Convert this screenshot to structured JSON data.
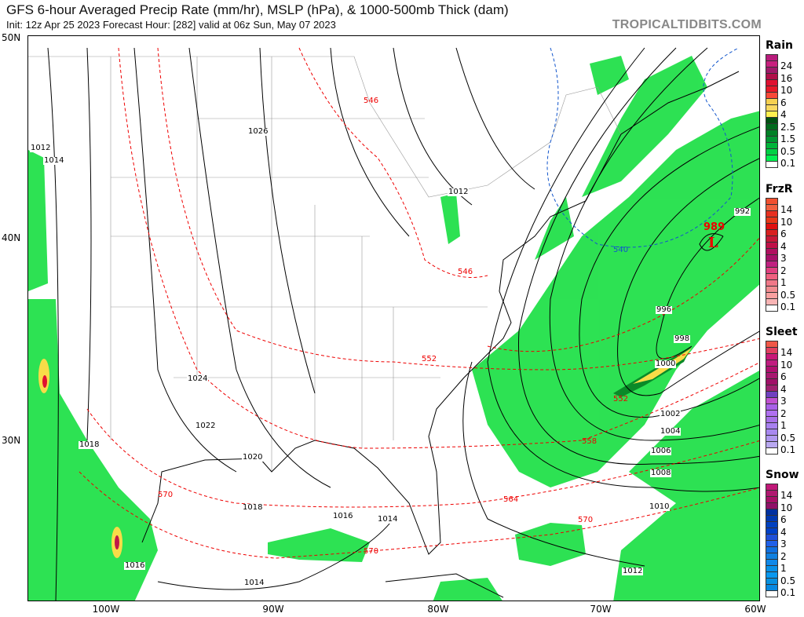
{
  "header": {
    "title": "GFS 6-hour Averaged Precip Rate (mm/hr), MSLP (hPa), & 1000-500mb Thick (dam)",
    "subtitle": "Init: 12z Apr 25 2023   Forecast Hour: [282]   valid at 06z Sun, May 07 2023",
    "brand": "TROPICALTIDBITS.COM"
  },
  "axes": {
    "lat": [
      "50N",
      "40N",
      "30N"
    ],
    "lon": [
      "100W",
      "90W",
      "80W",
      "70W",
      "60W"
    ]
  },
  "isobars": [
    "1026",
    "1012",
    "1014",
    "1012",
    "992",
    "996",
    "998",
    "1000",
    "1002",
    "1004",
    "1006",
    "1008",
    "1010",
    "1012",
    "1014",
    "1016",
    "1018",
    "1020",
    "1022",
    "1024",
    "1018",
    "1016",
    "1014"
  ],
  "thickness": [
    "546",
    "546",
    "540",
    "552",
    "552",
    "558",
    "564",
    "570",
    "570",
    "570"
  ],
  "low": {
    "pressure": "989",
    "symbol": "L"
  },
  "legends": [
    {
      "title": "Rain",
      "labels": [
        "24",
        "16",
        "10",
        "6",
        "4",
        "2.5",
        "1.5",
        "0.5",
        "0.1"
      ],
      "colors": [
        "#b81c7c",
        "#c8207e",
        "#a01a6a",
        "#b0104a",
        "#e01030",
        "#e81828",
        "#f84838",
        "#f5d050",
        "#f8d860",
        "#fff050",
        "#005012",
        "#006a1c",
        "#008026",
        "#009632",
        "#00b43a",
        "#00d044",
        "#00f050",
        "#ffffff"
      ]
    },
    {
      "title": "FrzR",
      "labels": [
        "14",
        "10",
        "6",
        "4",
        "3",
        "2",
        "1",
        "0.5",
        "0.1"
      ],
      "colors": [
        "#f05030",
        "#f06040",
        "#e83020",
        "#e83818",
        "#e01010",
        "#d82020",
        "#c81838",
        "#c01048",
        "#b01060",
        "#a8106a",
        "#c02080",
        "#e04080",
        "#f06080",
        "#f07888",
        "#f08c90",
        "#f8a0a0",
        "#f8b4b4",
        "#ffffff"
      ]
    },
    {
      "title": "Sleet",
      "labels": [
        "14",
        "10",
        "6",
        "4",
        "3",
        "2",
        "1",
        "0.5",
        "0.1"
      ],
      "colors": [
        "#f05848",
        "#e04060",
        "#c81878",
        "#c01c80",
        "#b01070",
        "#a81870",
        "#a01068",
        "#a02070",
        "#7040c0",
        "#c050d0",
        "#a860e8",
        "#b070f0",
        "#a870e8",
        "#a880f0",
        "#a888f0",
        "#b098f0",
        "#b8a8f0",
        "#ffffff"
      ]
    },
    {
      "title": "Snow",
      "labels": [
        "14",
        "10",
        "6",
        "4",
        "3",
        "2",
        "1",
        "0.5",
        "0.1"
      ],
      "colors": [
        "#c01878",
        "#b01870",
        "#a81068",
        "#901068",
        "#0030a0",
        "#0038b0",
        "#0040c0",
        "#0040c8",
        "#2050d8",
        "#2060e8",
        "#1070e0",
        "#1080e0",
        "#1088e8",
        "#0890e8",
        "#0898f0",
        "#0890e0",
        "#0888e0",
        "#ffffff"
      ]
    }
  ]
}
